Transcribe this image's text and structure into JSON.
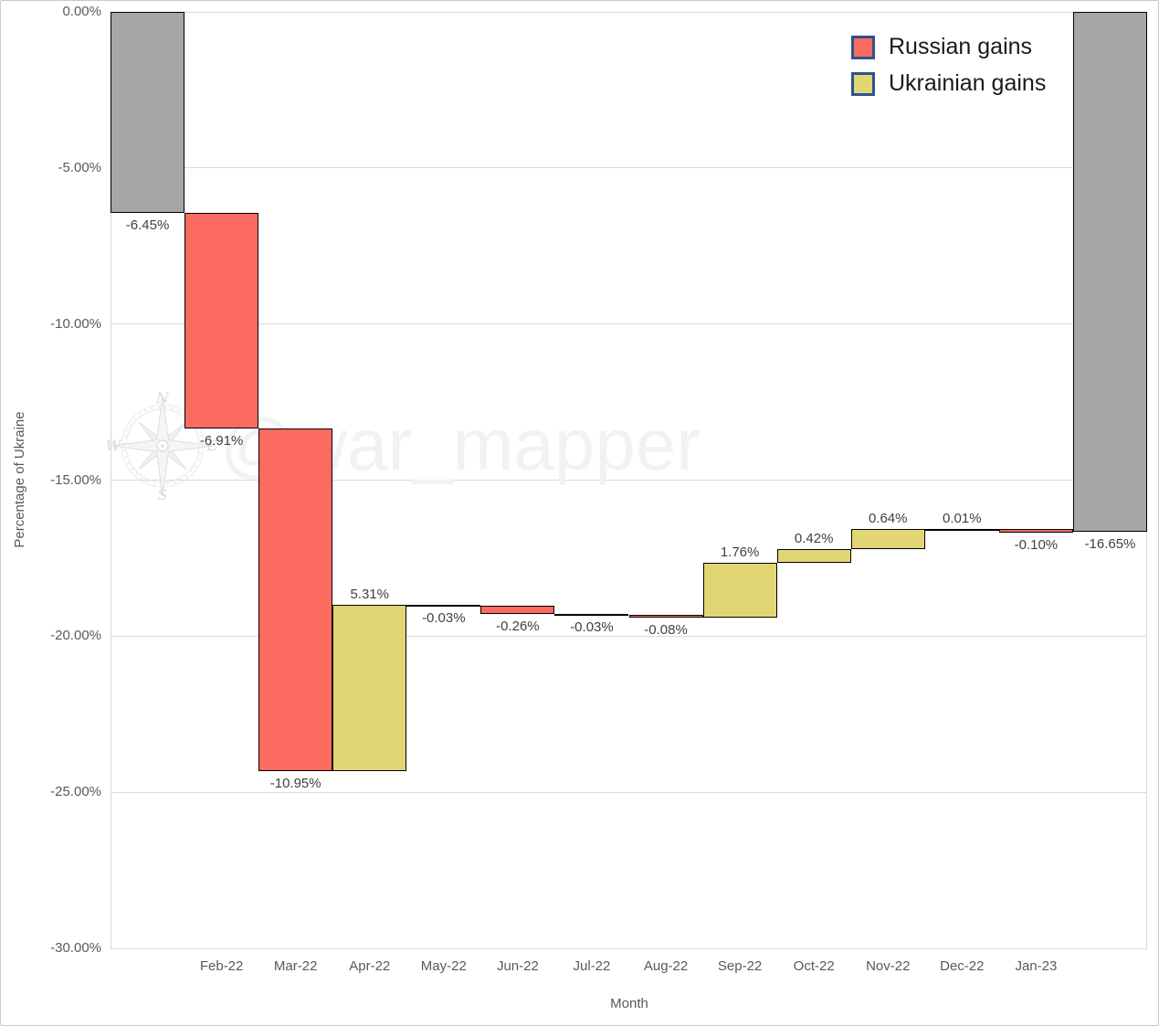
{
  "chart_data": {
    "type": "waterfall-bar",
    "title": "",
    "xlabel": "Month",
    "ylabel": "Percentage of Ukraine",
    "ylim": [
      -30,
      0
    ],
    "ytick_labels": [
      "0.00%",
      "-5.00%",
      "-10.00%",
      "-15.00%",
      "-20.00%",
      "-25.00%",
      "-30.00%"
    ],
    "grid": true,
    "categories": [
      "Feb-22",
      "Mar-22",
      "Apr-22",
      "May-22",
      "Jun-22",
      "Jul-22",
      "Aug-22",
      "Sep-22",
      "Oct-22",
      "Nov-22",
      "Dec-22",
      "Jan-23"
    ],
    "legend_position": "top-right",
    "legend": [
      {
        "label": "Russian gains",
        "series": "russian",
        "color": "#fb6b5f",
        "border": "#2f528f"
      },
      {
        "label": "Ukrainian gains",
        "series": "ukrainian",
        "color": "#e2d674",
        "border": "#2f528f"
      }
    ],
    "series_colors": {
      "russian": "#fb6b5f",
      "ukrainian": "#e2d674",
      "neutral": "#a6a6a6"
    },
    "bar_border_color": "#000000",
    "gridline_color": "#d9d9d9",
    "steps": [
      {
        "category": "",
        "label": "-6.45%",
        "value": -6.45,
        "kind": "initial",
        "series": "neutral"
      },
      {
        "category": "Feb-22",
        "label": "-6.91%",
        "value": -6.91,
        "kind": "delta",
        "series": "russian"
      },
      {
        "category": "Mar-22",
        "label": "-10.95%",
        "value": -10.95,
        "kind": "delta",
        "series": "russian"
      },
      {
        "category": "Apr-22",
        "label": "5.31%",
        "value": 5.31,
        "kind": "delta",
        "series": "ukrainian"
      },
      {
        "category": "May-22",
        "label": "-0.03%",
        "value": -0.03,
        "kind": "delta",
        "series": "russian"
      },
      {
        "category": "Jun-22",
        "label": "-0.26%",
        "value": -0.26,
        "kind": "delta",
        "series": "russian"
      },
      {
        "category": "Jul-22",
        "label": "-0.03%",
        "value": -0.03,
        "kind": "delta",
        "series": "russian"
      },
      {
        "category": "Aug-22",
        "label": "-0.08%",
        "value": -0.08,
        "kind": "delta",
        "series": "russian"
      },
      {
        "category": "Sep-22",
        "label": "1.76%",
        "value": 1.76,
        "kind": "delta",
        "series": "ukrainian"
      },
      {
        "category": "Oct-22",
        "label": "0.42%",
        "value": 0.42,
        "kind": "delta",
        "series": "ukrainian"
      },
      {
        "category": "Nov-22",
        "label": "0.64%",
        "value": 0.64,
        "kind": "delta",
        "series": "ukrainian"
      },
      {
        "category": "Dec-22",
        "label": "0.01%",
        "value": 0.01,
        "kind": "delta",
        "series": "ukrainian"
      },
      {
        "category": "Jan-23",
        "label": "-0.10%",
        "value": -0.1,
        "kind": "delta",
        "series": "russian"
      },
      {
        "category": "",
        "label": "-16.65%",
        "value": -16.65,
        "kind": "total",
        "series": "neutral"
      }
    ],
    "watermark": {
      "text": "@war_mapper",
      "compass": "compass-rose"
    }
  }
}
